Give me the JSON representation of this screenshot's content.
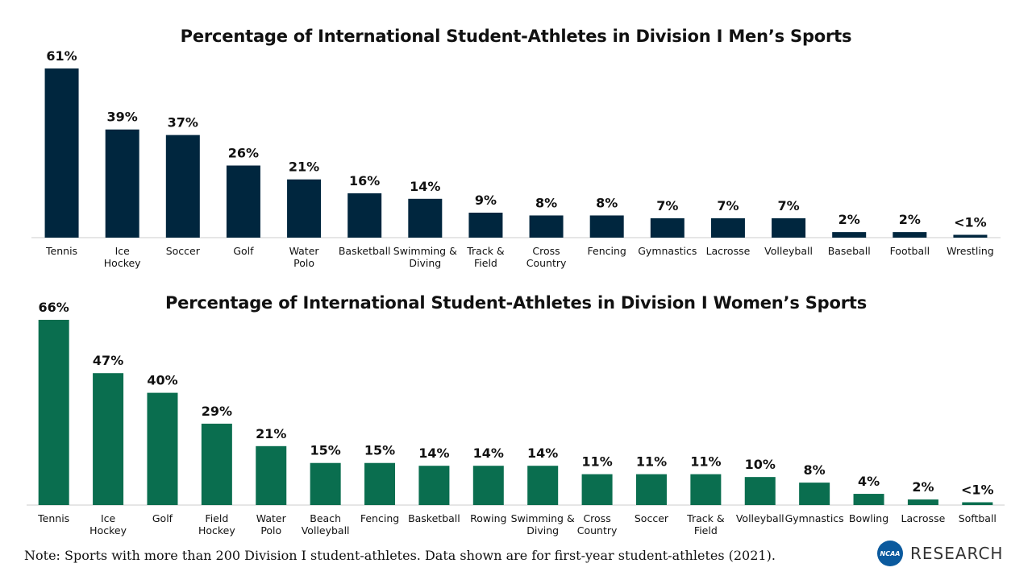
{
  "colors": {
    "men_bar": "#00263e",
    "women_bar": "#0a6e4f",
    "axis": "#cccccc"
  },
  "chart_data": [
    {
      "type": "bar",
      "title": "Percentage of International Student-Athletes in Division I Men’s Sports",
      "categories": [
        "Tennis",
        "Ice Hockey",
        "Soccer",
        "Golf",
        "Water Polo",
        "Basketball",
        "Swimming & Diving",
        "Track & Field",
        "Cross Country",
        "Fencing",
        "Gymnastics",
        "Lacrosse",
        "Volleyball",
        "Baseball",
        "Football",
        "Wrestling"
      ],
      "values": [
        61,
        39,
        37,
        26,
        21,
        16,
        14,
        9,
        8,
        8,
        7,
        7,
        7,
        2,
        2,
        0.5
      ],
      "data_labels": [
        "61%",
        "39%",
        "37%",
        "26%",
        "21%",
        "16%",
        "14%",
        "9%",
        "8%",
        "8%",
        "7%",
        "7%",
        "7%",
        "2%",
        "2%",
        "<1%"
      ],
      "xlabel": "",
      "ylabel": "",
      "ylim": [
        0,
        61
      ],
      "grid": false
    },
    {
      "type": "bar",
      "title": "Percentage of International Student-Athletes in Division I Women’s Sports",
      "categories": [
        "Tennis",
        "Ice Hockey",
        "Golf",
        "Field Hockey",
        "Water Polo",
        "Beach Volleyball",
        "Fencing",
        "Basketball",
        "Rowing",
        "Swimming & Diving",
        "Cross Country",
        "Soccer",
        "Track & Field",
        "Volleyball",
        "Gymnastics",
        "Bowling",
        "Lacrosse",
        "Softball"
      ],
      "values": [
        66,
        47,
        40,
        29,
        21,
        15,
        15,
        14,
        14,
        14,
        11,
        11,
        11,
        10,
        8,
        4,
        2,
        0.5
      ],
      "data_labels": [
        "66%",
        "47%",
        "40%",
        "29%",
        "21%",
        "15%",
        "15%",
        "14%",
        "14%",
        "14%",
        "11%",
        "11%",
        "11%",
        "10%",
        "8%",
        "4%",
        "2%",
        "<1%"
      ],
      "xlabel": "",
      "ylabel": "",
      "ylim": [
        0,
        66
      ],
      "grid": false
    }
  ],
  "note": "Note: Sports with more than 200 Division I student-athletes. Data shown are for first-year student-athletes (2021).",
  "logo": {
    "badge": "NCAA",
    "text": "RESEARCH"
  }
}
